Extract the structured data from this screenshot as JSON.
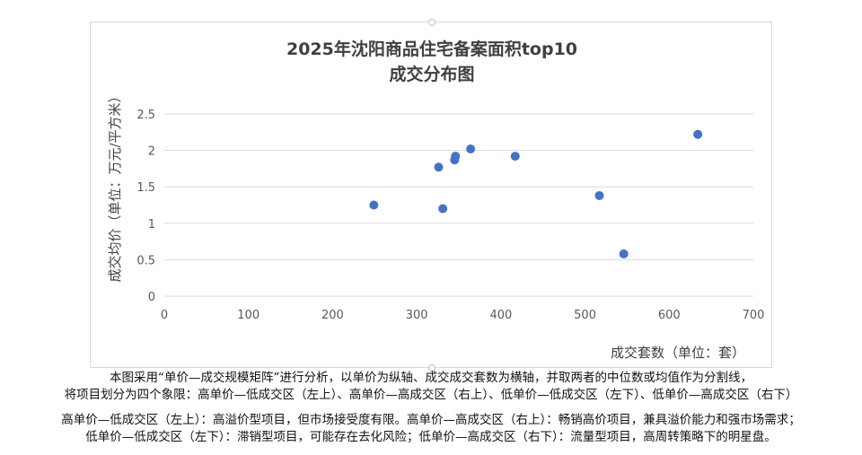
{
  "chart_data": {
    "type": "scatter",
    "title_line1": "2025年沈阳商品住宅备案面积top10",
    "title_line2": "成交分布图",
    "xlabel": "成交套数（单位：套）",
    "ylabel": "成交均价（单位：万元/平方米）",
    "xlim": [
      0,
      700
    ],
    "ylim": [
      0,
      2.5
    ],
    "x_ticks": [
      "0",
      "100",
      "200",
      "300",
      "400",
      "500",
      "600",
      "700"
    ],
    "y_ticks": [
      "0",
      "0.5",
      "1",
      "1.5",
      "2",
      "2.5"
    ],
    "grid": "horizontal",
    "marker_color": "#4472c4",
    "points": [
      {
        "x": 249,
        "y": 1.25
      },
      {
        "x": 326,
        "y": 1.77
      },
      {
        "x": 331,
        "y": 1.2
      },
      {
        "x": 345,
        "y": 1.87
      },
      {
        "x": 346,
        "y": 1.92
      },
      {
        "x": 364,
        "y": 2.02
      },
      {
        "x": 417,
        "y": 1.92
      },
      {
        "x": 517,
        "y": 1.38
      },
      {
        "x": 546,
        "y": 0.58
      },
      {
        "x": 634,
        "y": 2.22
      }
    ]
  },
  "notes": {
    "line1": "本图采用“单价—成交规模矩阵”进行分析，以单价为纵轴、成交成交套数为横轴，并取两者的中位数或均值作为分割线，",
    "line2": "将项目划分为四个象限：高单价—低成交区（左上）、高单价—高成交区（右上）、低单价—低成交区（左下）、低单价—高成交区（右下）",
    "line3": "高单价—低成交区（左上）：高溢价型项目，但市场接受度有限。高单价—高成交区（右上）：畅销高价项目，兼具溢价能力和强市场需求；",
    "line4": "低单价—低成交区（左下）：滞销型项目，可能存在去化风险；低单价—高成交区（右下）：流量型项目，高周转策略下的明星盘。"
  }
}
